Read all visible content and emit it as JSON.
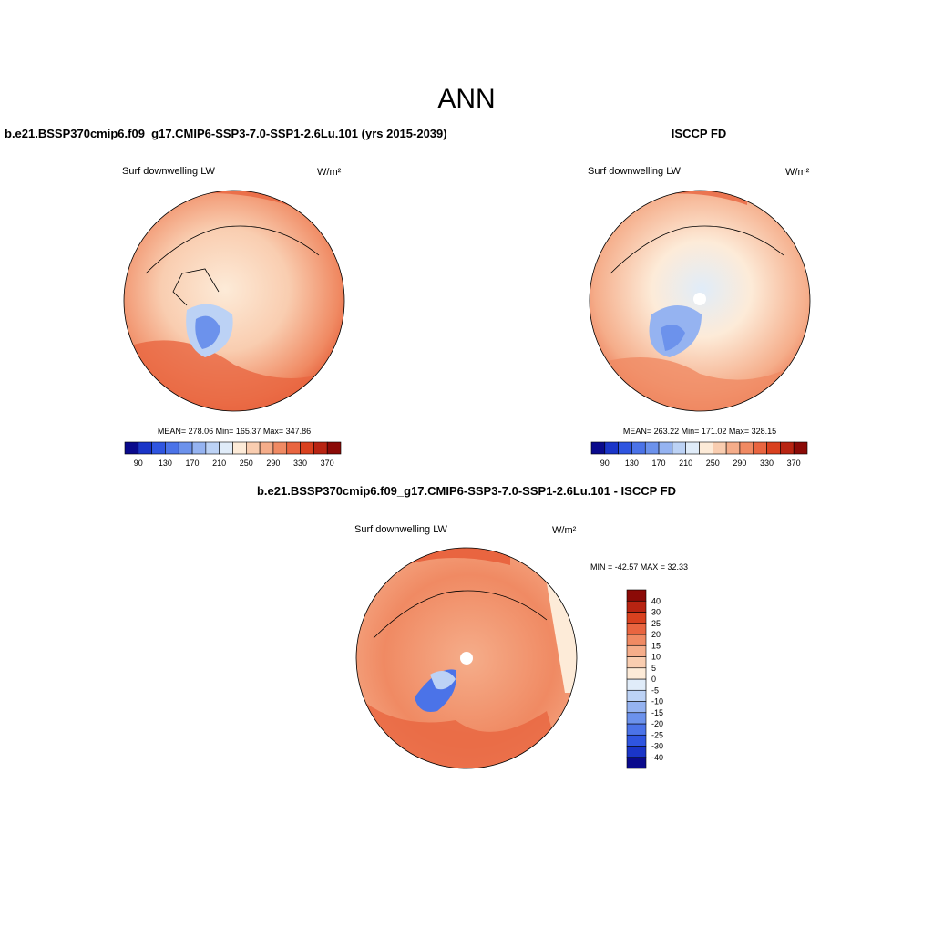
{
  "title": "ANN",
  "panels": [
    {
      "heading": "b.e21.BSSP370cmip6.f09_g17.CMIP6-SSP3-7.0-SSP1-2.6Lu.101 (yrs 2015-2039)",
      "variable": "Surf downwelling LW",
      "units": "W/m²",
      "stats": "MEAN= 278.06  Min= 165.37  Max= 347.86"
    },
    {
      "heading": "ISCCP FD",
      "variable": "Surf downwelling LW",
      "units": "W/m²",
      "stats": "MEAN= 263.22  Min= 171.02  Max= 328.15"
    },
    {
      "heading": "b.e21.BSSP370cmip6.f09_g17.CMIP6-SSP3-7.0-SSP1-2.6Lu.101 - ISCCP FD",
      "variable": "Surf downwelling LW",
      "units": "W/m²",
      "stats": "MIN = -42.57 MAX =  32.33"
    }
  ],
  "colorbars": [
    {
      "labels": [
        90,
        null,
        130,
        null,
        170,
        null,
        210,
        null,
        250,
        null,
        290,
        null,
        330,
        null,
        370
      ],
      "colors": [
        "#0a0a8c",
        "#1a35c8",
        "#2f55e0",
        "#4b73e8",
        "#6c92ec",
        "#95b3f1",
        "#bcd2f5",
        "#e0ecf9",
        "#fdebd8",
        "#f9cdb0",
        "#f5ad8a",
        "#f08a63",
        "#e96540",
        "#d9411f",
        "#b82412",
        "#8b0a07"
      ]
    },
    {
      "labels": [
        -40,
        -30,
        -25,
        -20,
        -15,
        -10,
        -5,
        0,
        5,
        10,
        15,
        20,
        25,
        30,
        40
      ],
      "colors": [
        "#0a0a8c",
        "#1a35c8",
        "#2f55e0",
        "#4b73e8",
        "#6c92ec",
        "#95b3f1",
        "#bcd2f5",
        "#e0ecf9",
        "#fdebd8",
        "#f9cdb0",
        "#f5ad8a",
        "#f08a63",
        "#e96540",
        "#d9411f",
        "#b82412",
        "#8b0a07"
      ]
    }
  ]
}
